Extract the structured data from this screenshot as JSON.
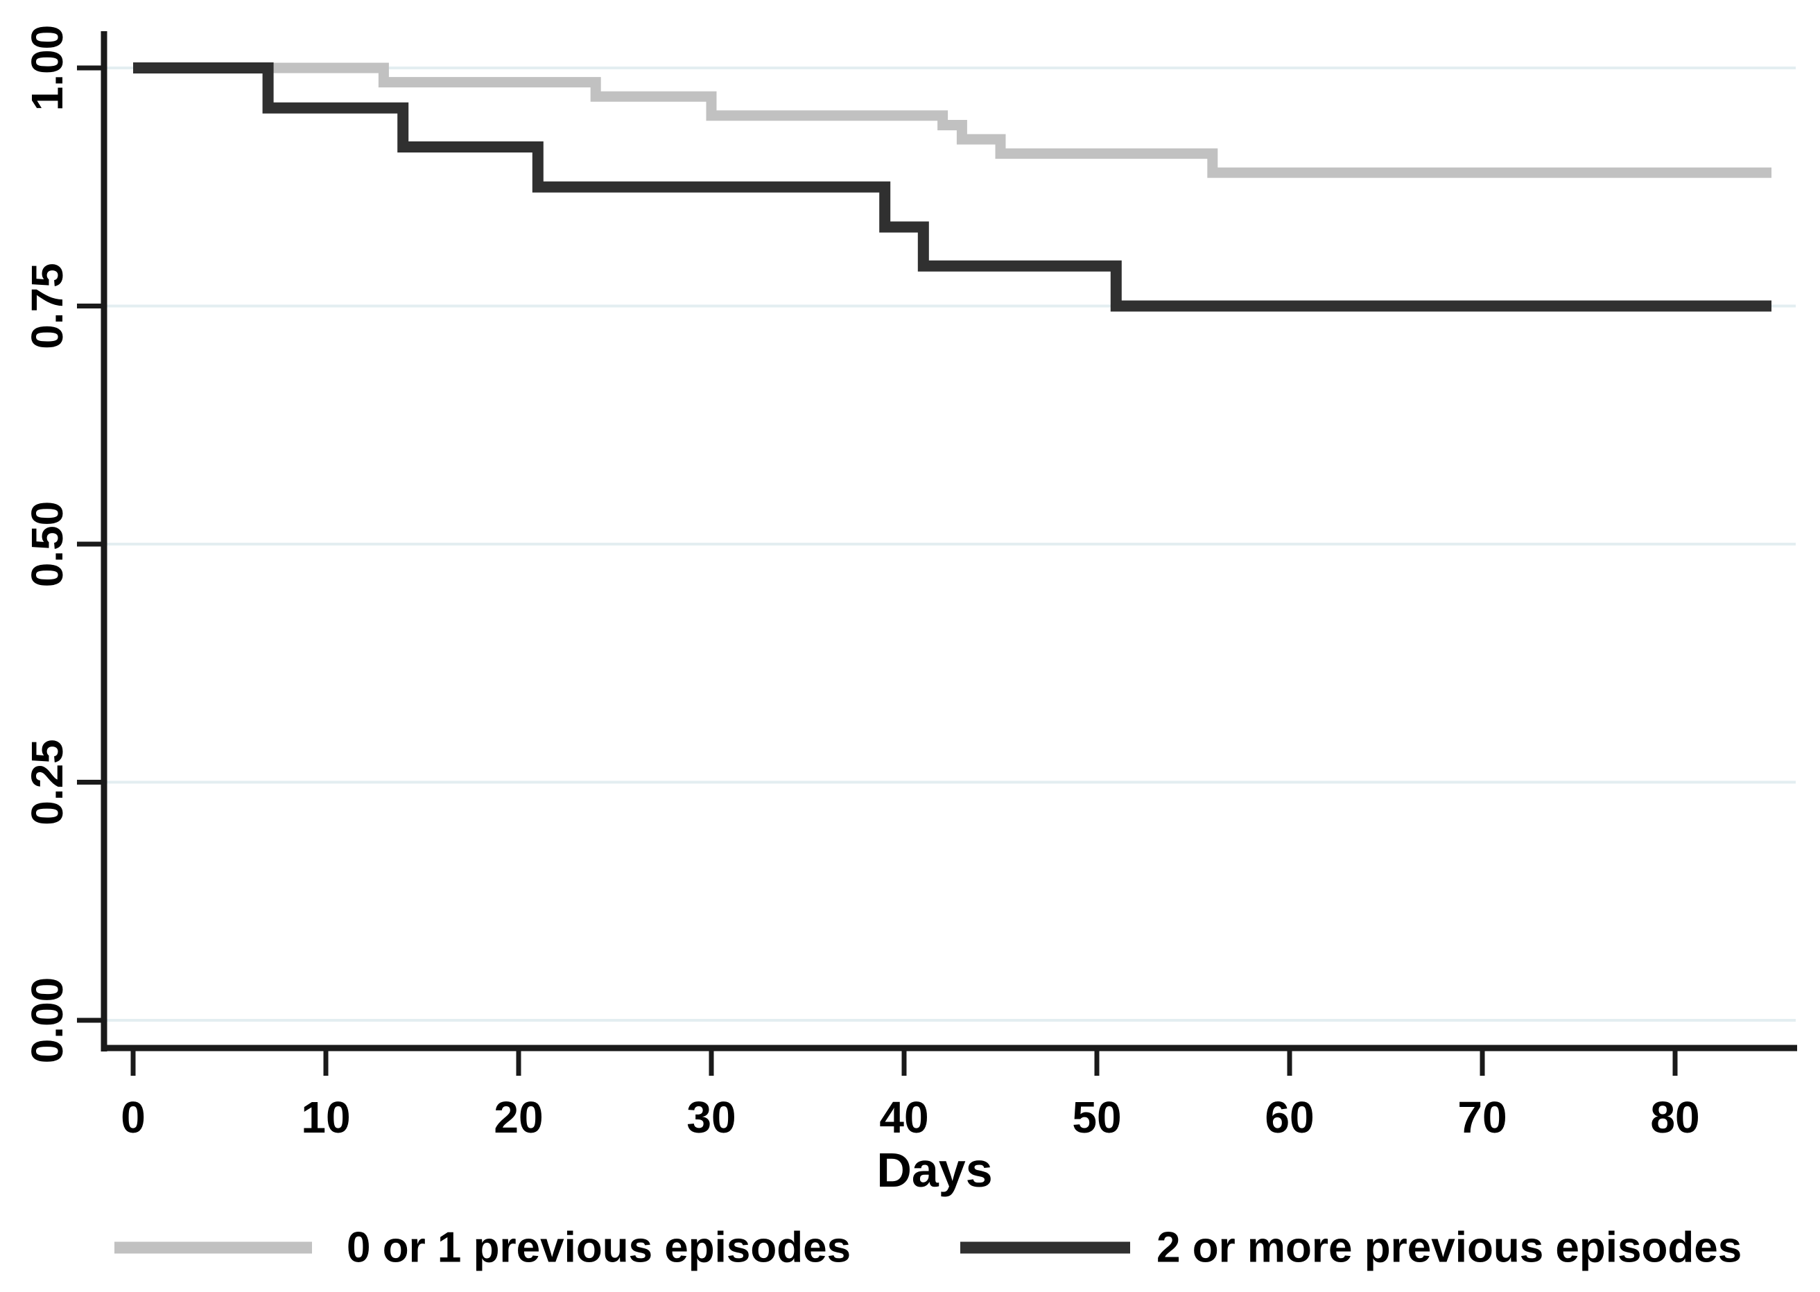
{
  "figure": {
    "background_color": "#ffffff",
    "axis_color": "#1a1a1a",
    "gridline_color": "#e3eef1"
  },
  "chart_data": {
    "type": "line",
    "subtype": "kaplan-meier-step",
    "title": "",
    "xlabel": "Days",
    "ylabel": "",
    "xlim": [
      0,
      86
    ],
    "ylim": [
      0.0,
      1.0
    ],
    "x_ticks": [
      0,
      10,
      20,
      30,
      40,
      50,
      60,
      70,
      80
    ],
    "x_tick_labels": [
      "0",
      "10",
      "20",
      "30",
      "40",
      "50",
      "60",
      "70",
      "80"
    ],
    "y_ticks": [
      0.0,
      0.25,
      0.5,
      0.75,
      1.0
    ],
    "y_tick_labels": [
      "0.00",
      "0.25",
      "0.50",
      "0.75",
      "1.00"
    ],
    "grid": {
      "horizontal": true,
      "vertical": false
    },
    "legend_position": "bottom",
    "curve_end_x": 85,
    "series": [
      {
        "name": "0 or 1 previous episodes",
        "color": "#c1c1c1",
        "steps": [
          [
            0,
            1.0
          ],
          [
            13,
            0.985
          ],
          [
            24,
            0.97
          ],
          [
            30,
            0.95
          ],
          [
            42,
            0.94
          ],
          [
            43,
            0.925
          ],
          [
            45,
            0.91
          ],
          [
            56,
            0.89
          ]
        ]
      },
      {
        "name": "2 or more previous episodes",
        "color": "#303030",
        "steps": [
          [
            0,
            1.0
          ],
          [
            7,
            0.958
          ],
          [
            14,
            0.917
          ],
          [
            21,
            0.875
          ],
          [
            39,
            0.833
          ],
          [
            41,
            0.792
          ],
          [
            51,
            0.75
          ]
        ]
      }
    ]
  }
}
